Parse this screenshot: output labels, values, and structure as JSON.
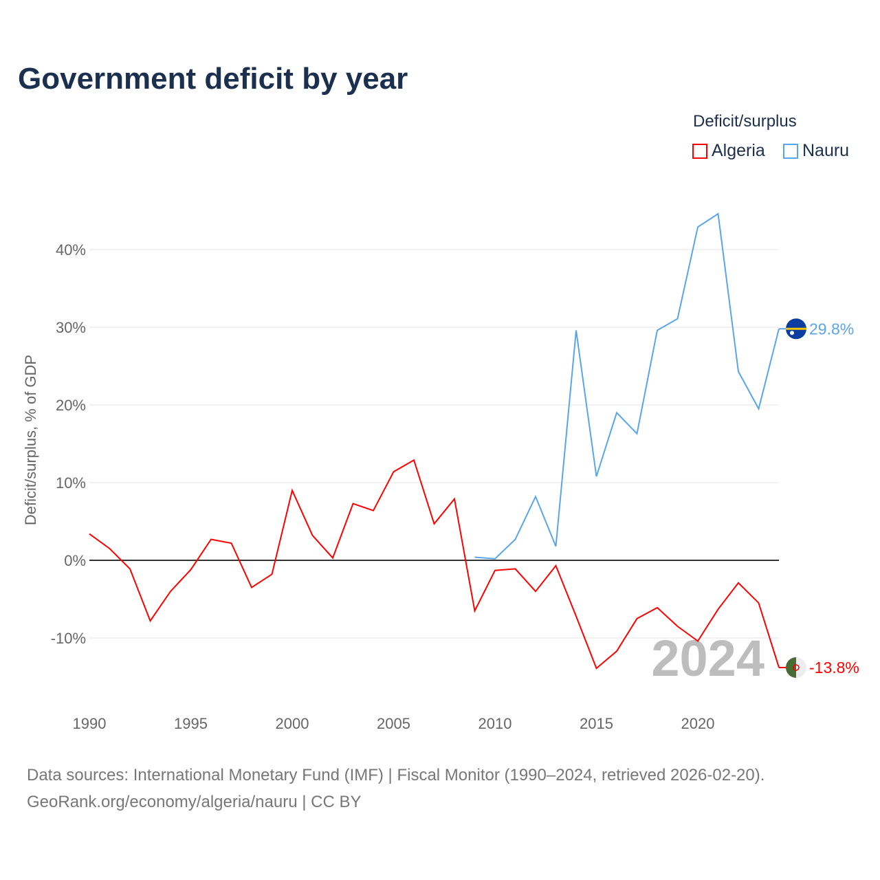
{
  "title": "Government deficit by year",
  "legend": {
    "title": "Deficit/surplus",
    "items": [
      "Algeria",
      "Nauru"
    ]
  },
  "source": {
    "line1": "Data sources: International Monetary Fund (IMF) | Fiscal Monitor (1990–2024, retrieved 2026-02-20).",
    "line2": "GeoRank.org/economy/algeria/nauru | CC BY"
  },
  "chart_data": {
    "type": "line",
    "title": "Government deficit by year",
    "xlabel": "",
    "ylabel": "Deficit/surplus, % of GDP",
    "xlim": [
      1990,
      2024
    ],
    "ylim": [
      -16,
      46
    ],
    "yticks": [
      -10,
      0,
      10,
      20,
      30,
      40
    ],
    "ytick_labels": [
      "-10%",
      "0%",
      "10%",
      "20%",
      "30%",
      "40%"
    ],
    "xticks": [
      1990,
      1995,
      2000,
      2005,
      2010,
      2015,
      2020
    ],
    "xtick_labels": [
      "1990",
      "1995",
      "2000",
      "2005",
      "2010",
      "2015",
      "2020"
    ],
    "year_label": "2024",
    "legend_position": "top-right",
    "series": [
      {
        "name": "Algeria",
        "color": "#ff0000",
        "end_label": "-13.8%",
        "x_start": 1990,
        "values": [
          3.4,
          1.5,
          -1.1,
          -7.8,
          -4.0,
          -1.2,
          2.7,
          2.2,
          -3.5,
          -1.8,
          9.0,
          3.2,
          0.3,
          7.3,
          6.4,
          11.4,
          12.9,
          4.7,
          7.9,
          -6.5,
          -1.3,
          -1.1,
          -4.0,
          -0.7,
          -7.2,
          -13.9,
          -11.7,
          -7.5,
          -6.1,
          -8.5,
          -10.4,
          -6.3,
          -2.9,
          -5.5,
          -13.8
        ]
      },
      {
        "name": "Nauru",
        "color": "#5aa5ea",
        "end_label": "29.8%",
        "x_start": 2009,
        "values": [
          0.4,
          0.2,
          2.7,
          8.2,
          1.8,
          29.6,
          10.8,
          19.0,
          16.3,
          29.6,
          31.1,
          42.9,
          44.6,
          24.3,
          19.5,
          29.8
        ]
      }
    ]
  }
}
